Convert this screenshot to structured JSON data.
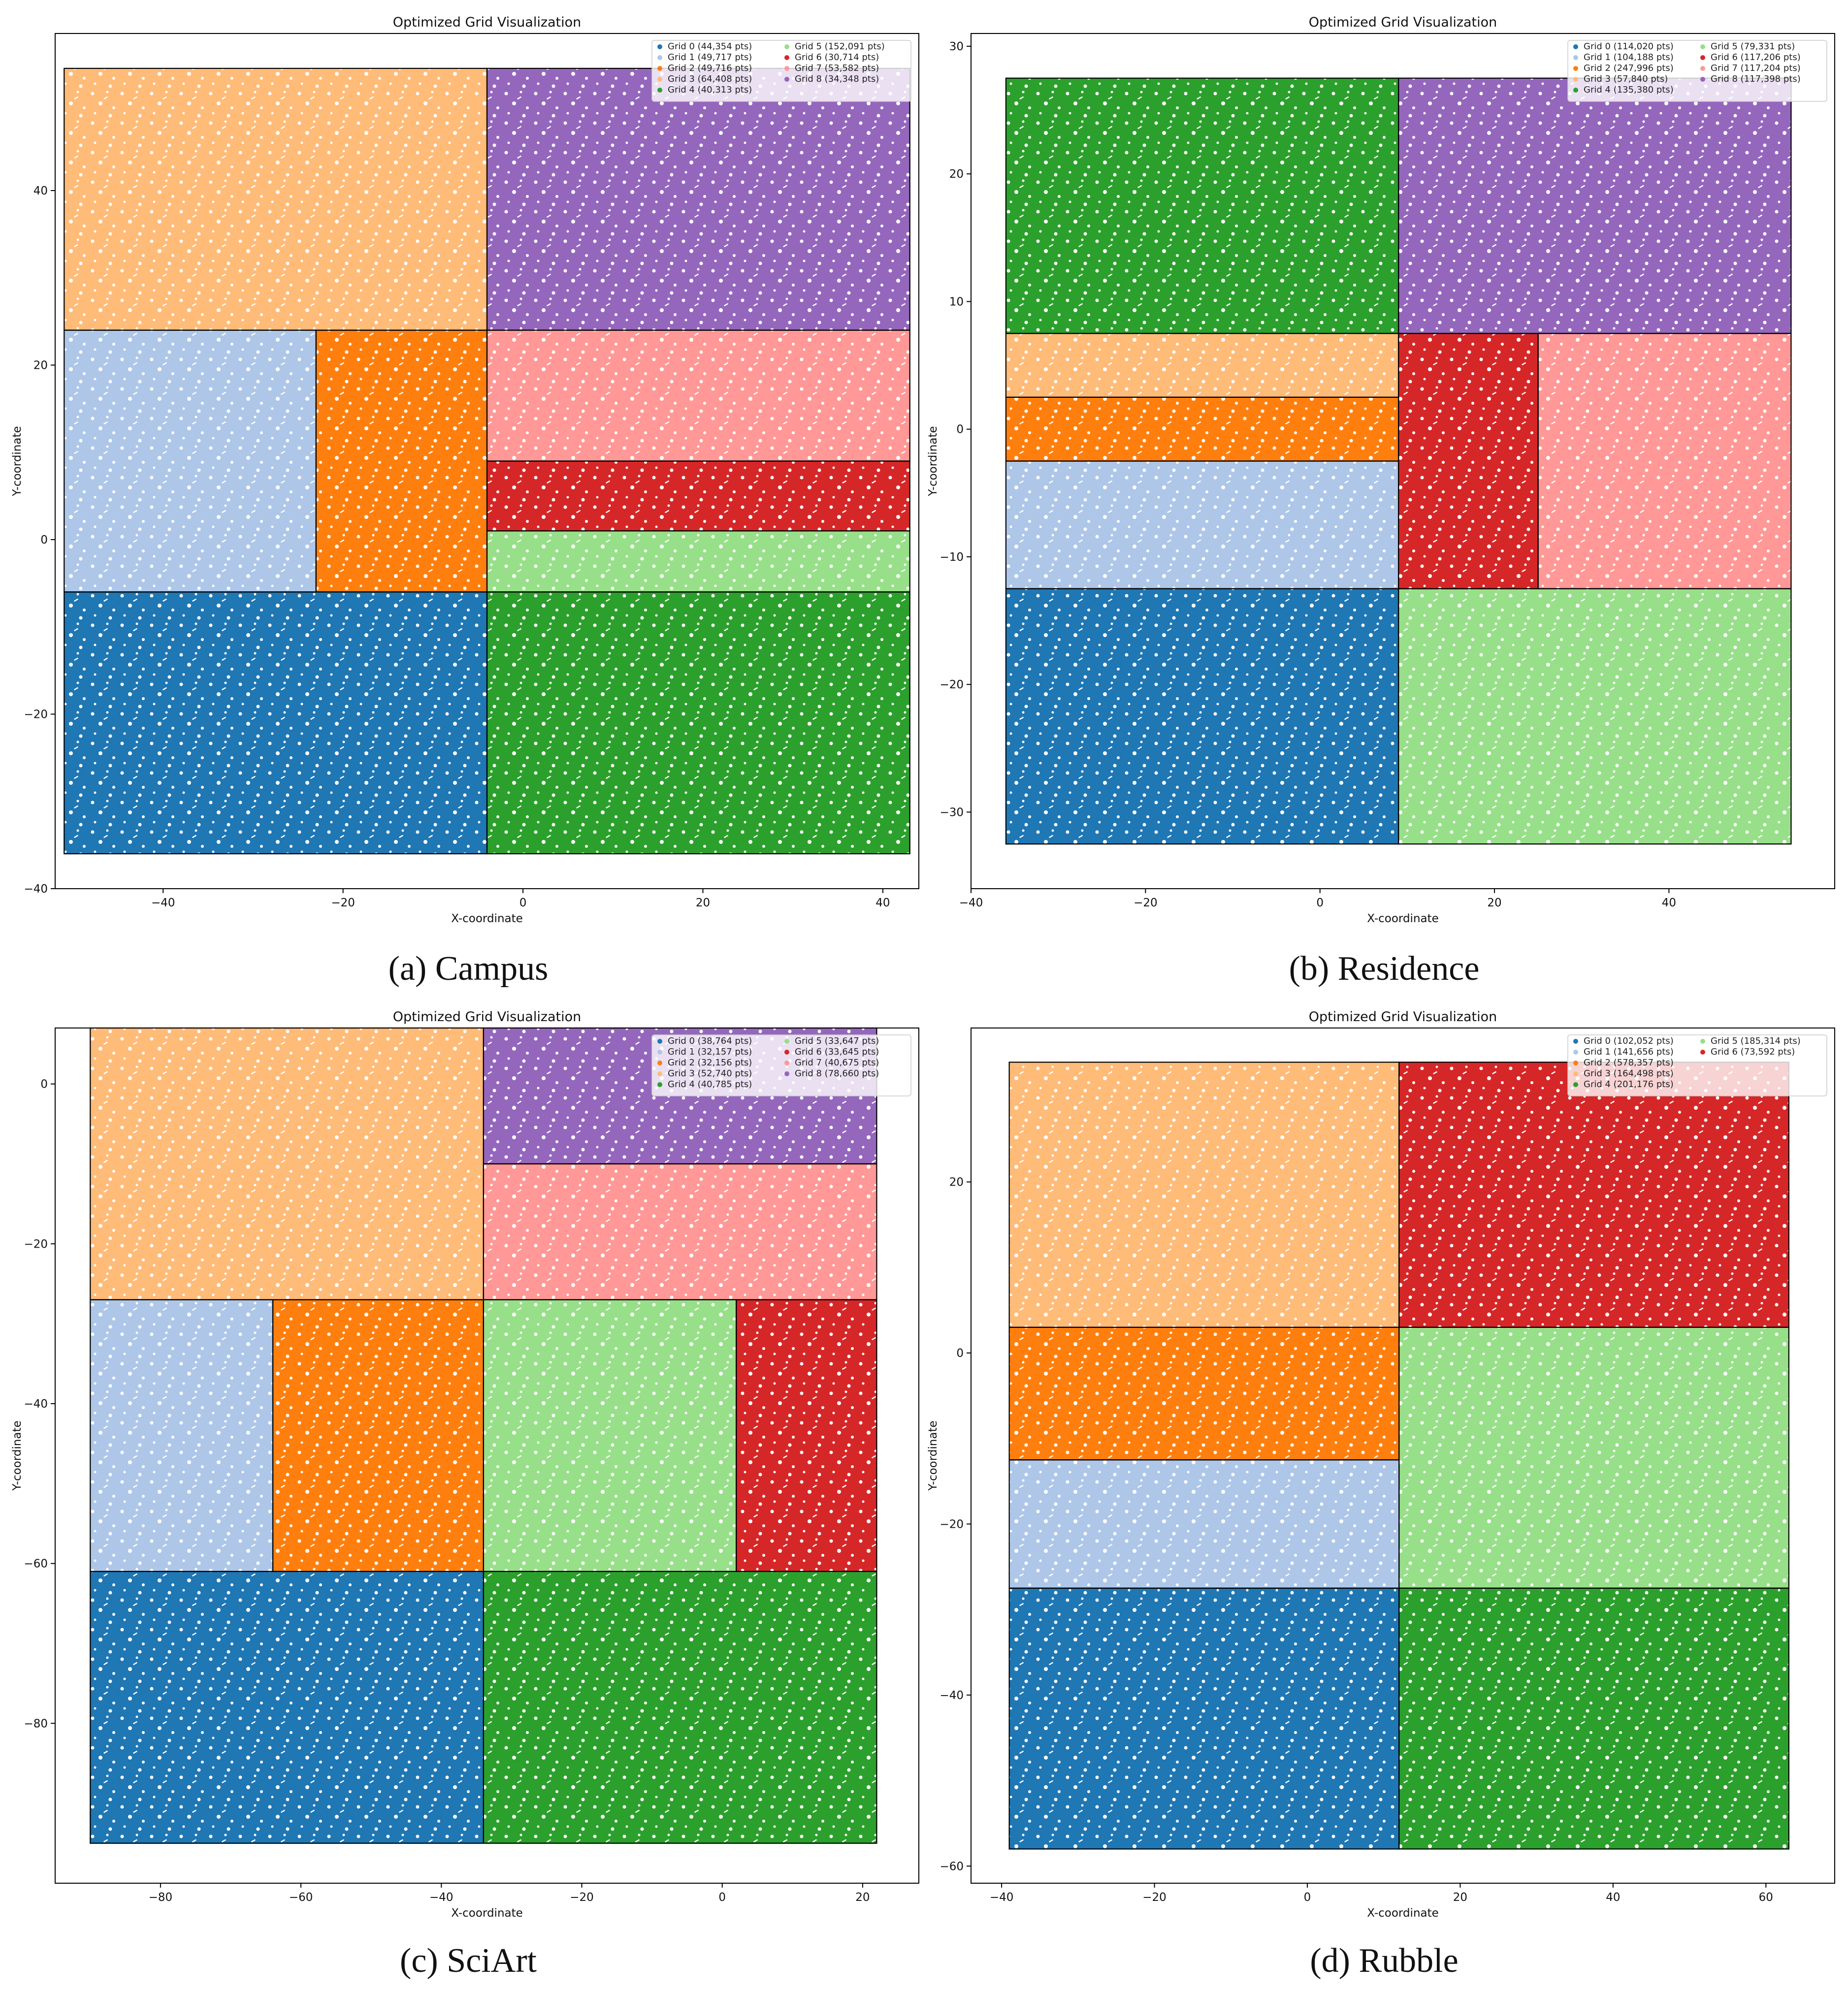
{
  "colors": {
    "Grid 0": "#1f77b4",
    "Grid 1": "#aec7e8",
    "Grid 2": "#ff7f0e",
    "Grid 3": "#ffbb78",
    "Grid 4": "#2ca02c",
    "Grid 5": "#98df8a",
    "Grid 6": "#d62728",
    "Grid 7": "#ff9896",
    "Grid 8": "#9467bd"
  },
  "chart_data": [
    {
      "type": "scatter",
      "caption": "(a) Campus",
      "title": "Optimized Grid Visualization",
      "xlabel": "X-coordinate",
      "ylabel": "Y-coordinate",
      "xlim": [
        -52,
        44
      ],
      "ylim": [
        -40,
        58
      ],
      "xticks": [
        -40,
        -20,
        0,
        20,
        40
      ],
      "yticks": [
        -40,
        -20,
        0,
        20,
        40
      ],
      "grid": false,
      "legend_position": "top-right",
      "legend": [
        "Grid 0 (44,354 pts)",
        "Grid 1 (49,717 pts)",
        "Grid 2 (49,716 pts)",
        "Grid 3 (64,408 pts)",
        "Grid 4 (40,313 pts)",
        "Grid 5 (152,091 pts)",
        "Grid 6 (30,714 pts)",
        "Grid 7 (53,582 pts)",
        "Grid 8 (34,348 pts)"
      ],
      "cells": [
        {
          "grid": "Grid 0",
          "points": 44354,
          "x": [
            -51,
            -4
          ],
          "y": [
            -36,
            -6
          ]
        },
        {
          "grid": "Grid 1",
          "points": 49717,
          "x": [
            -51,
            -23
          ],
          "y": [
            -6,
            24
          ]
        },
        {
          "grid": "Grid 2",
          "points": 49716,
          "x": [
            -23,
            -4
          ],
          "y": [
            -6,
            24
          ]
        },
        {
          "grid": "Grid 3",
          "points": 64408,
          "x": [
            -51,
            -4
          ],
          "y": [
            24,
            54
          ]
        },
        {
          "grid": "Grid 4",
          "points": 40313,
          "x": [
            -4,
            43
          ],
          "y": [
            -36,
            -6
          ]
        },
        {
          "grid": "Grid 5",
          "points": 152091,
          "x": [
            -4,
            43
          ],
          "y": [
            -6,
            1
          ]
        },
        {
          "grid": "Grid 6",
          "points": 30714,
          "x": [
            -4,
            43
          ],
          "y": [
            1,
            9
          ]
        },
        {
          "grid": "Grid 7",
          "points": 53582,
          "x": [
            -4,
            43
          ],
          "y": [
            9,
            24
          ]
        },
        {
          "grid": "Grid 8",
          "points": 34348,
          "x": [
            -4,
            43
          ],
          "y": [
            24,
            54
          ]
        }
      ]
    },
    {
      "type": "scatter",
      "caption": "(b) Residence",
      "title": "Optimized Grid Visualization",
      "xlabel": "X-coordinate",
      "ylabel": "Y-coordinate",
      "xlim": [
        -40,
        59
      ],
      "ylim": [
        -36,
        31
      ],
      "xticks": [
        -40,
        -20,
        0,
        20,
        40
      ],
      "yticks": [
        -30,
        -20,
        -10,
        0,
        10,
        20,
        30
      ],
      "grid": false,
      "legend_position": "top-right",
      "legend": [
        "Grid 0 (114,020 pts)",
        "Grid 1 (104,188 pts)",
        "Grid 2 (247,996 pts)",
        "Grid 3 (57,840 pts)",
        "Grid 4 (135,380 pts)",
        "Grid 5 (79,331 pts)",
        "Grid 6 (117,206 pts)",
        "Grid 7 (117,204 pts)",
        "Grid 8 (117,398 pts)"
      ],
      "cells": [
        {
          "grid": "Grid 0",
          "points": 114020,
          "x": [
            -36,
            9
          ],
          "y": [
            -32.5,
            -12.5
          ]
        },
        {
          "grid": "Grid 1",
          "points": 104188,
          "x": [
            -36,
            9
          ],
          "y": [
            -12.5,
            -2.5
          ]
        },
        {
          "grid": "Grid 2",
          "points": 247996,
          "x": [
            -36,
            9
          ],
          "y": [
            -2.5,
            2.5
          ]
        },
        {
          "grid": "Grid 3",
          "points": 57840,
          "x": [
            -36,
            9
          ],
          "y": [
            2.5,
            7.5
          ]
        },
        {
          "grid": "Grid 4",
          "points": 135380,
          "x": [
            -36,
            9
          ],
          "y": [
            7.5,
            27.5
          ]
        },
        {
          "grid": "Grid 5",
          "points": 79331,
          "x": [
            9,
            54
          ],
          "y": [
            -32.5,
            -12.5
          ]
        },
        {
          "grid": "Grid 6",
          "points": 117206,
          "x": [
            9,
            25
          ],
          "y": [
            -12.5,
            7.5
          ]
        },
        {
          "grid": "Grid 7",
          "points": 117204,
          "x": [
            25,
            54
          ],
          "y": [
            -12.5,
            7.5
          ]
        },
        {
          "grid": "Grid 8",
          "points": 117398,
          "x": [
            9,
            54
          ],
          "y": [
            7.5,
            27.5
          ]
        }
      ]
    },
    {
      "type": "scatter",
      "caption": "(c) SciArt",
      "title": "Optimized Grid Visualization",
      "xlabel": "X-coordinate",
      "ylabel": "Y-coordinate",
      "xlim": [
        -95,
        28
      ],
      "ylim": [
        -100,
        7
      ],
      "xticks": [
        -80,
        -60,
        -40,
        -20,
        0,
        20
      ],
      "yticks": [
        -80,
        -60,
        -40,
        -20,
        0
      ],
      "grid": false,
      "legend_position": "top-right",
      "legend": [
        "Grid 0 (38,764 pts)",
        "Grid 1 (32,157 pts)",
        "Grid 2 (32,156 pts)",
        "Grid 3 (52,740 pts)",
        "Grid 4 (40,785 pts)",
        "Grid 5 (33,647 pts)",
        "Grid 6 (33,645 pts)",
        "Grid 7 (40,675 pts)",
        "Grid 8 (78,660 pts)"
      ],
      "cells": [
        {
          "grid": "Grid 0",
          "points": 38764,
          "x": [
            -90,
            -34
          ],
          "y": [
            -95,
            -61
          ]
        },
        {
          "grid": "Grid 1",
          "points": 32157,
          "x": [
            -90,
            -64
          ],
          "y": [
            -61,
            -27
          ]
        },
        {
          "grid": "Grid 2",
          "points": 32156,
          "x": [
            -64,
            -34
          ],
          "y": [
            -61,
            -27
          ]
        },
        {
          "grid": "Grid 3",
          "points": 52740,
          "x": [
            -90,
            -34
          ],
          "y": [
            -27,
            7
          ]
        },
        {
          "grid": "Grid 4",
          "points": 40785,
          "x": [
            -34,
            22
          ],
          "y": [
            -95,
            -61
          ]
        },
        {
          "grid": "Grid 5",
          "points": 33647,
          "x": [
            -34,
            2
          ],
          "y": [
            -61,
            -27
          ]
        },
        {
          "grid": "Grid 6",
          "points": 33645,
          "x": [
            2,
            22
          ],
          "y": [
            -61,
            -27
          ]
        },
        {
          "grid": "Grid 7",
          "points": 40675,
          "x": [
            -34,
            22
          ],
          "y": [
            -27,
            -10
          ]
        },
        {
          "grid": "Grid 8",
          "points": 78660,
          "x": [
            -34,
            22
          ],
          "y": [
            -10,
            7
          ]
        }
      ]
    },
    {
      "type": "scatter",
      "caption": "(d) Rubble",
      "title": "Optimized Grid Visualization",
      "xlabel": "X-coordinate",
      "ylabel": "Y-coordinate",
      "xlim": [
        -44,
        69
      ],
      "ylim": [
        -62,
        38
      ],
      "xticks": [
        -40,
        -20,
        0,
        20,
        40,
        60
      ],
      "yticks": [
        -60,
        -40,
        -20,
        0,
        20
      ],
      "grid": false,
      "legend_position": "top-right",
      "legend": [
        "Grid 0 (102,052 pts)",
        "Grid 1 (141,656 pts)",
        "Grid 2 (578,357 pts)",
        "Grid 3 (164,498 pts)",
        "Grid 4 (201,176 pts)",
        "Grid 5 (185,314 pts)",
        "Grid 6 (73,592 pts)"
      ],
      "cells": [
        {
          "grid": "Grid 0",
          "points": 102052,
          "x": [
            -39,
            12
          ],
          "y": [
            -58,
            -27.5
          ]
        },
        {
          "grid": "Grid 1",
          "points": 141656,
          "x": [
            -39,
            12
          ],
          "y": [
            -27.5,
            -12.5
          ]
        },
        {
          "grid": "Grid 2",
          "points": 578357,
          "x": [
            -39,
            12
          ],
          "y": [
            -12.5,
            3
          ]
        },
        {
          "grid": "Grid 3",
          "points": 164498,
          "x": [
            -39,
            12
          ],
          "y": [
            3,
            34
          ]
        },
        {
          "grid": "Grid 4",
          "points": 201176,
          "x": [
            12,
            63
          ],
          "y": [
            -58,
            -27.5
          ]
        },
        {
          "grid": "Grid 5",
          "points": 185314,
          "x": [
            12,
            63
          ],
          "y": [
            -27.5,
            3
          ]
        },
        {
          "grid": "Grid 6",
          "points": 73592,
          "x": [
            12,
            63
          ],
          "y": [
            3,
            34
          ]
        }
      ]
    }
  ]
}
